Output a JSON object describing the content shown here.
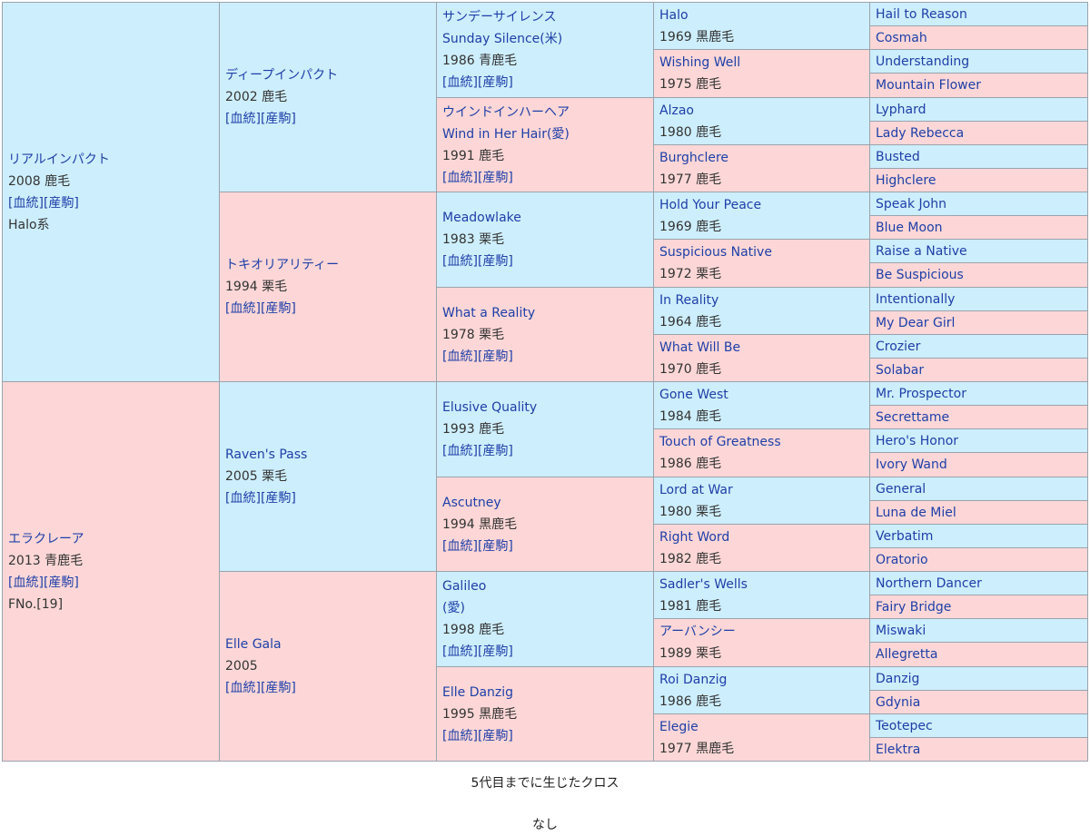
{
  "pedigree": {
    "link_blood": "[血統]",
    "link_foals": "[産駒]",
    "horses": [
      {
        "gen": 1,
        "row": 0,
        "sex": "m",
        "name": "リアルインパクト",
        "info": "2008 鹿毛",
        "links": true,
        "extra": "Halo系"
      },
      {
        "gen": 1,
        "row": 1,
        "sex": "f",
        "name": "エラクレーア",
        "info": "2013 青鹿毛",
        "links": true,
        "extra": "FNo.[19]"
      },
      {
        "gen": 2,
        "row": 0,
        "sex": "m",
        "name": "ディープインパクト",
        "info": "2002 鹿毛",
        "links": true
      },
      {
        "gen": 2,
        "row": 1,
        "sex": "f",
        "name": "トキオリアリティー",
        "info": "1994 栗毛",
        "links": true
      },
      {
        "gen": 2,
        "row": 2,
        "sex": "m",
        "name": "Raven's Pass",
        "info": "2005 栗毛",
        "links": true
      },
      {
        "gen": 2,
        "row": 3,
        "sex": "f",
        "name": "Elle Gala",
        "info": "2005",
        "links": true
      },
      {
        "gen": 3,
        "row": 0,
        "sex": "m",
        "name": "サンデーサイレンス",
        "alt": "Sunday Silence(米)",
        "info": "1986 青鹿毛",
        "links": true
      },
      {
        "gen": 3,
        "row": 1,
        "sex": "f",
        "name": "ウインドインハーヘア",
        "alt": "Wind in Her Hair(愛)",
        "info": "1991 鹿毛",
        "links": true
      },
      {
        "gen": 3,
        "row": 2,
        "sex": "m",
        "name": "Meadowlake",
        "info": "1983 栗毛",
        "links": true
      },
      {
        "gen": 3,
        "row": 3,
        "sex": "f",
        "name": "What a Reality",
        "info": "1978 栗毛",
        "links": true
      },
      {
        "gen": 3,
        "row": 4,
        "sex": "m",
        "name": "Elusive Quality",
        "info": "1993 鹿毛",
        "links": true
      },
      {
        "gen": 3,
        "row": 5,
        "sex": "f",
        "name": "Ascutney",
        "info": "1994 黒鹿毛",
        "links": true
      },
      {
        "gen": 3,
        "row": 6,
        "sex": "m",
        "name": "Galileo",
        "alt": "(愛)",
        "info": "1998 鹿毛",
        "links": true
      },
      {
        "gen": 3,
        "row": 7,
        "sex": "f",
        "name": "Elle Danzig",
        "info": "1995 黒鹿毛",
        "links": true
      },
      {
        "gen": 4,
        "row": 0,
        "sex": "m",
        "name": "Halo",
        "info": "1969 黒鹿毛"
      },
      {
        "gen": 4,
        "row": 1,
        "sex": "f",
        "name": "Wishing Well",
        "info": "1975 鹿毛"
      },
      {
        "gen": 4,
        "row": 2,
        "sex": "m",
        "name": "Alzao",
        "info": "1980 鹿毛"
      },
      {
        "gen": 4,
        "row": 3,
        "sex": "f",
        "name": "Burghclere",
        "info": "1977 鹿毛"
      },
      {
        "gen": 4,
        "row": 4,
        "sex": "m",
        "name": "Hold Your Peace",
        "info": "1969 鹿毛"
      },
      {
        "gen": 4,
        "row": 5,
        "sex": "f",
        "name": "Suspicious Native",
        "info": "1972 栗毛"
      },
      {
        "gen": 4,
        "row": 6,
        "sex": "m",
        "name": "In Reality",
        "info": "1964 鹿毛"
      },
      {
        "gen": 4,
        "row": 7,
        "sex": "f",
        "name": "What Will Be",
        "info": "1970 鹿毛"
      },
      {
        "gen": 4,
        "row": 8,
        "sex": "m",
        "name": "Gone West",
        "info": "1984 鹿毛"
      },
      {
        "gen": 4,
        "row": 9,
        "sex": "f",
        "name": "Touch of Greatness",
        "info": "1986 鹿毛"
      },
      {
        "gen": 4,
        "row": 10,
        "sex": "m",
        "name": "Lord at War",
        "info": "1980 栗毛"
      },
      {
        "gen": 4,
        "row": 11,
        "sex": "f",
        "name": "Right Word",
        "info": "1982 鹿毛"
      },
      {
        "gen": 4,
        "row": 12,
        "sex": "m",
        "name": "Sadler's Wells",
        "info": "1981 鹿毛"
      },
      {
        "gen": 4,
        "row": 13,
        "sex": "f",
        "name": "アーバンシー",
        "info": "1989 栗毛"
      },
      {
        "gen": 4,
        "row": 14,
        "sex": "m",
        "name": "Roi Danzig",
        "info": "1986 鹿毛"
      },
      {
        "gen": 4,
        "row": 15,
        "sex": "f",
        "name": "Elegie",
        "info": "1977 黒鹿毛"
      },
      {
        "gen": 5,
        "row": 0,
        "sex": "m",
        "name": "Hail to Reason"
      },
      {
        "gen": 5,
        "row": 1,
        "sex": "f",
        "name": "Cosmah"
      },
      {
        "gen": 5,
        "row": 2,
        "sex": "m",
        "name": "Understanding"
      },
      {
        "gen": 5,
        "row": 3,
        "sex": "f",
        "name": "Mountain Flower"
      },
      {
        "gen": 5,
        "row": 4,
        "sex": "m",
        "name": "Lyphard"
      },
      {
        "gen": 5,
        "row": 5,
        "sex": "f",
        "name": "Lady Rebecca"
      },
      {
        "gen": 5,
        "row": 6,
        "sex": "m",
        "name": "Busted"
      },
      {
        "gen": 5,
        "row": 7,
        "sex": "f",
        "name": "Highclere"
      },
      {
        "gen": 5,
        "row": 8,
        "sex": "m",
        "name": "Speak John"
      },
      {
        "gen": 5,
        "row": 9,
        "sex": "f",
        "name": "Blue Moon"
      },
      {
        "gen": 5,
        "row": 10,
        "sex": "m",
        "name": "Raise a Native"
      },
      {
        "gen": 5,
        "row": 11,
        "sex": "f",
        "name": "Be Suspicious"
      },
      {
        "gen": 5,
        "row": 12,
        "sex": "m",
        "name": "Intentionally"
      },
      {
        "gen": 5,
        "row": 13,
        "sex": "f",
        "name": "My Dear Girl"
      },
      {
        "gen": 5,
        "row": 14,
        "sex": "m",
        "name": "Crozier"
      },
      {
        "gen": 5,
        "row": 15,
        "sex": "f",
        "name": "Solabar"
      },
      {
        "gen": 5,
        "row": 16,
        "sex": "m",
        "name": "Mr. Prospector"
      },
      {
        "gen": 5,
        "row": 17,
        "sex": "f",
        "name": "Secrettame"
      },
      {
        "gen": 5,
        "row": 18,
        "sex": "m",
        "name": "Hero's Honor"
      },
      {
        "gen": 5,
        "row": 19,
        "sex": "f",
        "name": "Ivory Wand"
      },
      {
        "gen": 5,
        "row": 20,
        "sex": "m",
        "name": "General"
      },
      {
        "gen": 5,
        "row": 21,
        "sex": "f",
        "name": "Luna de Miel"
      },
      {
        "gen": 5,
        "row": 22,
        "sex": "m",
        "name": "Verbatim"
      },
      {
        "gen": 5,
        "row": 23,
        "sex": "f",
        "name": "Oratorio"
      },
      {
        "gen": 5,
        "row": 24,
        "sex": "m",
        "name": "Northern Dancer"
      },
      {
        "gen": 5,
        "row": 25,
        "sex": "f",
        "name": "Fairy Bridge"
      },
      {
        "gen": 5,
        "row": 26,
        "sex": "m",
        "name": "Miswaki"
      },
      {
        "gen": 5,
        "row": 27,
        "sex": "f",
        "name": "Allegretta"
      },
      {
        "gen": 5,
        "row": 28,
        "sex": "m",
        "name": "Danzig"
      },
      {
        "gen": 5,
        "row": 29,
        "sex": "f",
        "name": "Gdynia"
      },
      {
        "gen": 5,
        "row": 30,
        "sex": "m",
        "name": "Teotepec"
      },
      {
        "gen": 5,
        "row": 31,
        "sex": "f",
        "name": "Elektra"
      }
    ]
  },
  "colors": {
    "male": "#cdeefc",
    "female": "#fdd7d7",
    "name": "#1e3fa8"
  },
  "cross": {
    "heading": "5代目までに生じたクロス",
    "value": "なし"
  }
}
